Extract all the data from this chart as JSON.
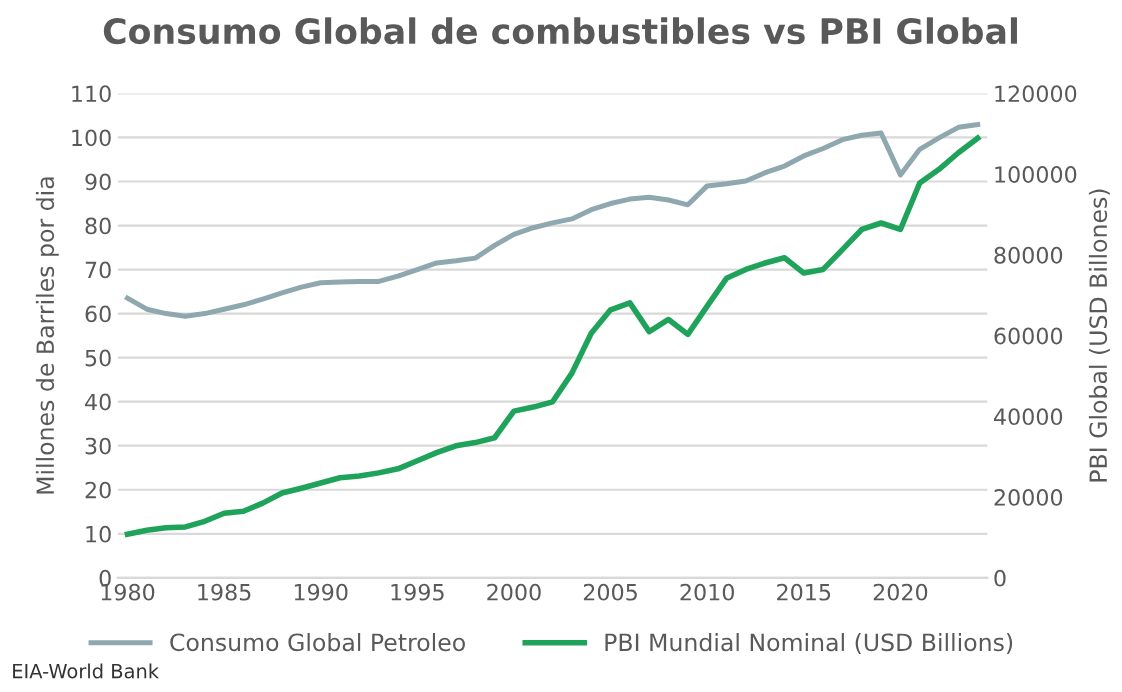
{
  "chart_data": {
    "type": "line",
    "title": "Consumo Global de combustibles vs PBI Global",
    "ylabel": "Millones de Barriles por dia",
    "y2label": "PBI Global (USD Billones)",
    "x": [
      1980,
      1981,
      1982,
      1983,
      1984,
      1985,
      1986,
      1987,
      1988,
      1989,
      1990,
      1991,
      1992,
      1993,
      1994,
      1995,
      1996,
      1997,
      1998,
      1999,
      2000,
      2001,
      2002,
      2003,
      2004,
      2005,
      2006,
      2007,
      2008,
      2009,
      2010,
      2011,
      2012,
      2013,
      2014,
      2015,
      2016,
      2017,
      2018,
      2019,
      2020,
      2021,
      2022,
      2023,
      2024
    ],
    "series": [
      {
        "name": "Consumo Global Petroleo",
        "color": "#8fa8b0",
        "values": [
          63.5,
          61,
          60,
          59.4,
          60,
          61,
          62,
          63.3,
          64.7,
          66,
          67,
          67.2,
          67.3,
          67.3,
          68.5,
          70,
          71.5,
          72,
          72.6,
          75.5,
          78,
          79.5,
          80.6,
          81.5,
          83.6,
          85,
          86,
          86.4,
          85.8,
          84.7,
          89,
          89.5,
          90.1,
          92,
          93.5,
          95.8,
          97.5,
          99.5,
          100.5,
          101,
          91.5,
          97.3,
          99.9,
          102.3,
          102.9
        ]
      },
      {
        "name": "PBI Mundial Nominal (USD Billions)",
        "color": "#1fa35a",
        "axis": "y2",
        "values": [
          10800,
          11800,
          12400,
          12600,
          14000,
          16000,
          16500,
          18500,
          21000,
          22200,
          23500,
          24800,
          25200,
          26000,
          27000,
          29000,
          31000,
          32700,
          33500,
          34700,
          41300,
          42300,
          43600,
          50700,
          60600,
          66400,
          68100,
          61000,
          64000,
          60300,
          67300,
          74200,
          76400,
          78000,
          79300,
          75500,
          76400,
          81300,
          86300,
          87900,
          86300,
          97800,
          101200,
          105300,
          108900
        ]
      }
    ],
    "xlim": [
      1979.5,
      2024.5
    ],
    "xticks": [
      1980,
      1985,
      1990,
      1995,
      2000,
      2005,
      2010,
      2015,
      2020
    ],
    "ylim": [
      0,
      110
    ],
    "yticks": [
      0,
      10,
      20,
      30,
      40,
      50,
      60,
      70,
      80,
      90,
      100,
      110
    ],
    "y2lim": [
      0,
      120000
    ],
    "y2ticks": [
      0,
      20000,
      40000,
      60000,
      80000,
      100000,
      120000
    ],
    "grid": "y",
    "legend": "bottom",
    "marker": "none",
    "line_style": "solid",
    "annotations": [
      "EIA-World Bank"
    ]
  }
}
